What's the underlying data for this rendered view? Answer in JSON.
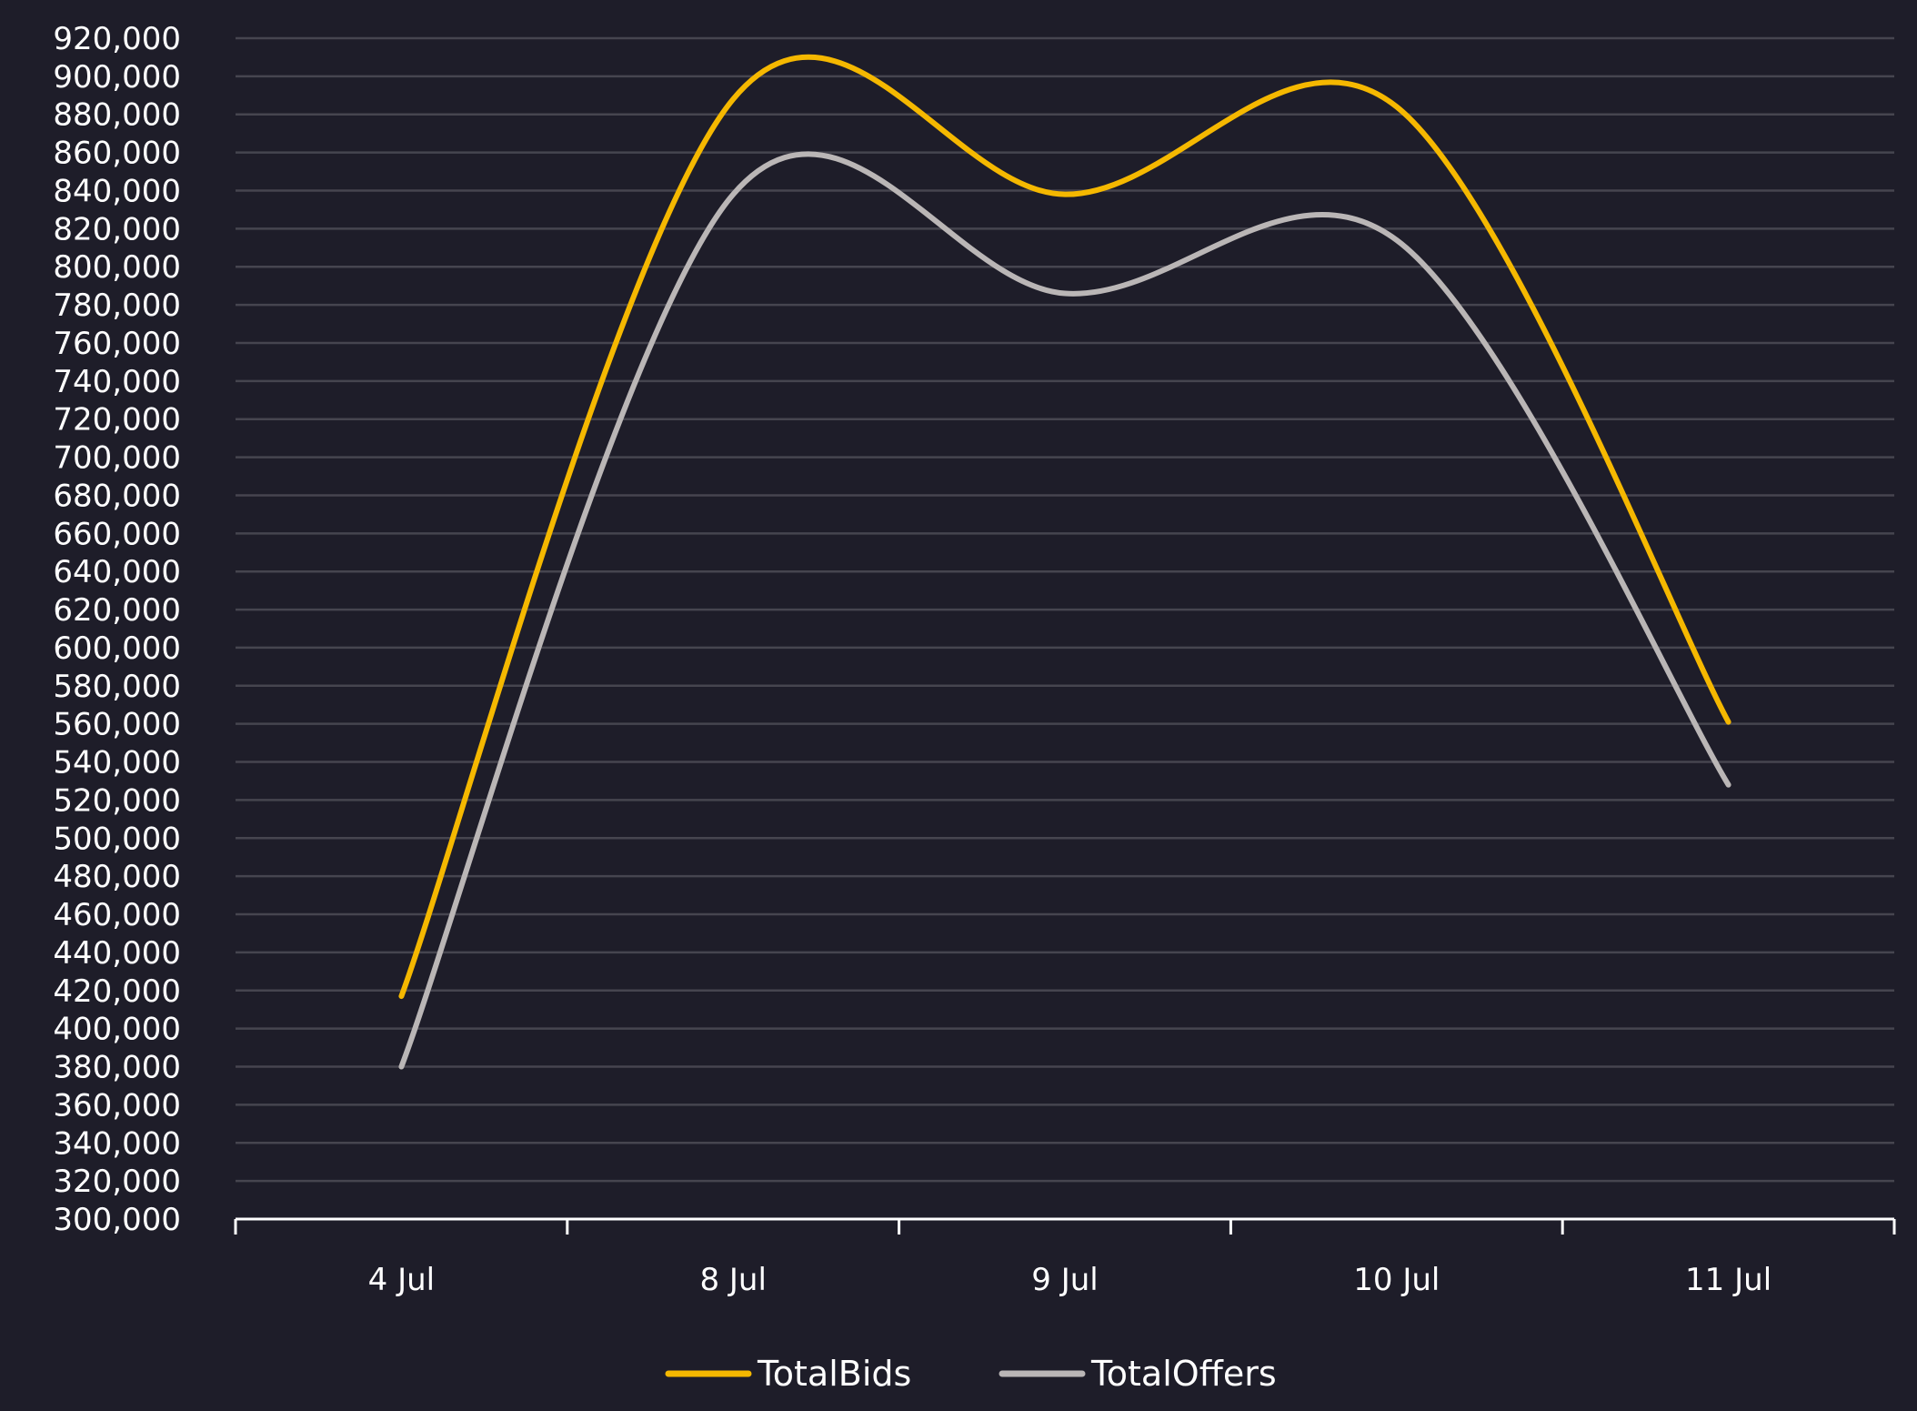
{
  "chart_data": {
    "type": "line",
    "categories": [
      "4 Jul",
      "8 Jul",
      "9 Jul",
      "10 Jul",
      "11 Jul"
    ],
    "series": [
      {
        "name": "TotalBids",
        "color": "#f5b800",
        "values": [
          417000,
          888000,
          838000,
          884000,
          561000
        ]
      },
      {
        "name": "TotalOffers",
        "color": "#bab6b6",
        "values": [
          380000,
          838000,
          786000,
          814000,
          528000
        ]
      }
    ],
    "ylim": [
      300000,
      920000
    ],
    "ytick_step": 20000,
    "grid": true,
    "smooth": true,
    "legend_position": "bottom-center",
    "background": "#1e1d29",
    "gridline_color": "#46454f",
    "axis_color": "#ffffff"
  }
}
